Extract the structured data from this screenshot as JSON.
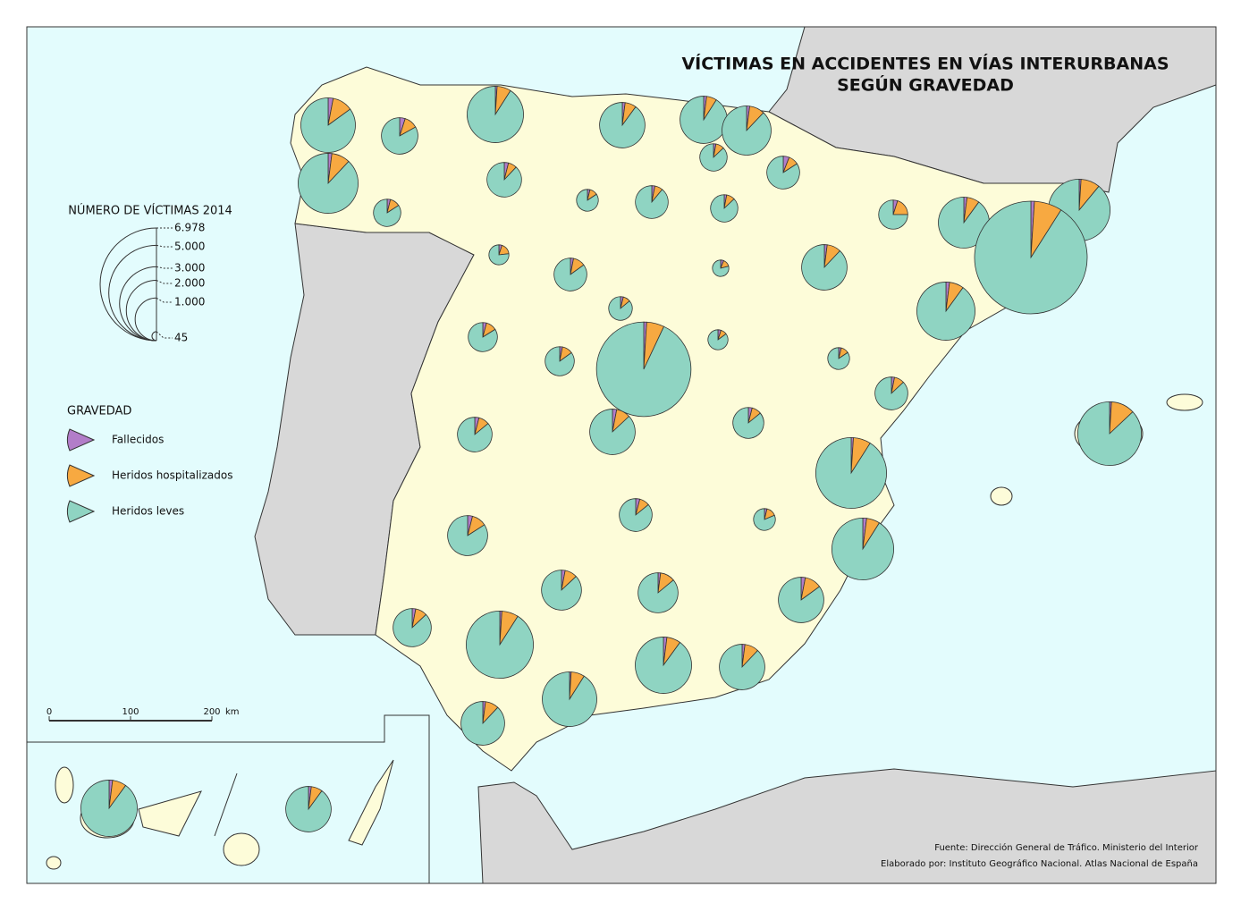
{
  "title": [
    "VÍCTIMAS EN ACCIDENTES EN VÍAS INTERURBANAS",
    "SEGÚN GRAVEDAD"
  ],
  "size_legend": {
    "title": "NÚMERO DE VÍCTIMAS 2014",
    "ticks": [
      {
        "value": 6978,
        "label": "6.978"
      },
      {
        "value": 5000,
        "label": "5.000"
      },
      {
        "value": 3000,
        "label": "3.000"
      },
      {
        "value": 2000,
        "label": "2.000"
      },
      {
        "value": 1000,
        "label": "1.000"
      },
      45
    ]
  },
  "legend": {
    "title": "GRAVEDAD",
    "items": [
      {
        "name": "Fallecidos",
        "color": "#b27dc9"
      },
      {
        "name": "Heridos hospitalizados",
        "color": "#f7a941"
      },
      {
        "name": "Heridos leves",
        "color": "#8fd4c2"
      }
    ]
  },
  "scale_bar": {
    "ticks": [
      0,
      100,
      200
    ],
    "unit": "km"
  },
  "pies": [
    [
      49,
      197,
      1392
    ],
    [
      40,
      198,
      1744
    ],
    [
      36,
      87,
      605
    ],
    [
      16,
      49,
      345
    ],
    [
      18,
      140,
      1592
    ],
    [
      23,
      91,
      1022
    ],
    [
      25,
      86,
      1118
    ],
    [
      27,
      133,
      1166
    ],
    [
      12,
      41,
      357
    ],
    [
      35,
      59,
      496
    ],
    [
      26,
      53,
      578
    ],
    [
      10,
      31,
      221
    ],
    [
      18,
      47,
      525
    ],
    [
      12,
      41,
      357
    ],
    [
      23,
      93,
      350
    ],
    [
      11,
      40,
      169
    ],
    [
      18,
      71,
      501
    ],
    [
      9,
      22,
      117
    ],
    [
      23,
      114,
      999
    ],
    [
      29,
      114,
      1285
    ],
    [
      21,
      210,
      1873
    ],
    [
      70,
      558,
      6350
    ],
    [
      37,
      149,
      1677
    ],
    [
      12,
      31,
      264
    ],
    [
      19,
      56,
      391
    ],
    [
      14,
      56,
      396
    ],
    [
      49,
      295,
      4565
    ],
    [
      11,
      22,
      187
    ],
    [
      21,
      53,
      451
    ],
    [
      10,
      31,
      221
    ],
    [
      18,
      59,
      513
    ],
    [
      26,
      66,
      565
    ],
    [
      34,
      114,
      988
    ],
    [
      28,
      221,
      2509
    ],
    [
      22,
      268,
      1941
    ],
    [
      35,
      105,
      739
    ],
    [
      24,
      59,
      507
    ],
    [
      10,
      39,
      213
    ],
    [
      42,
      147,
      1915
    ],
    [
      26,
      88,
      765
    ],
    [
      18,
      105,
      756
    ],
    [
      34,
      136,
      966
    ],
    [
      24,
      80,
      698
    ],
    [
      25,
      199,
      2261
    ],
    [
      35,
      140,
      1575
    ],
    [
      23,
      114,
      999
    ],
    [
      21,
      105,
      923
    ],
    [
      16,
      131,
      1491
    ],
    [
      35,
      140,
      1575
    ],
    [
      23,
      91,
      1022
    ]
  ],
  "source": [
    "Fuente: Dirección General de Tráfico. Ministerio del Interior",
    "Elaborado por: Instituto Geográfico Nacional. Atlas Nacional de España"
  ]
}
